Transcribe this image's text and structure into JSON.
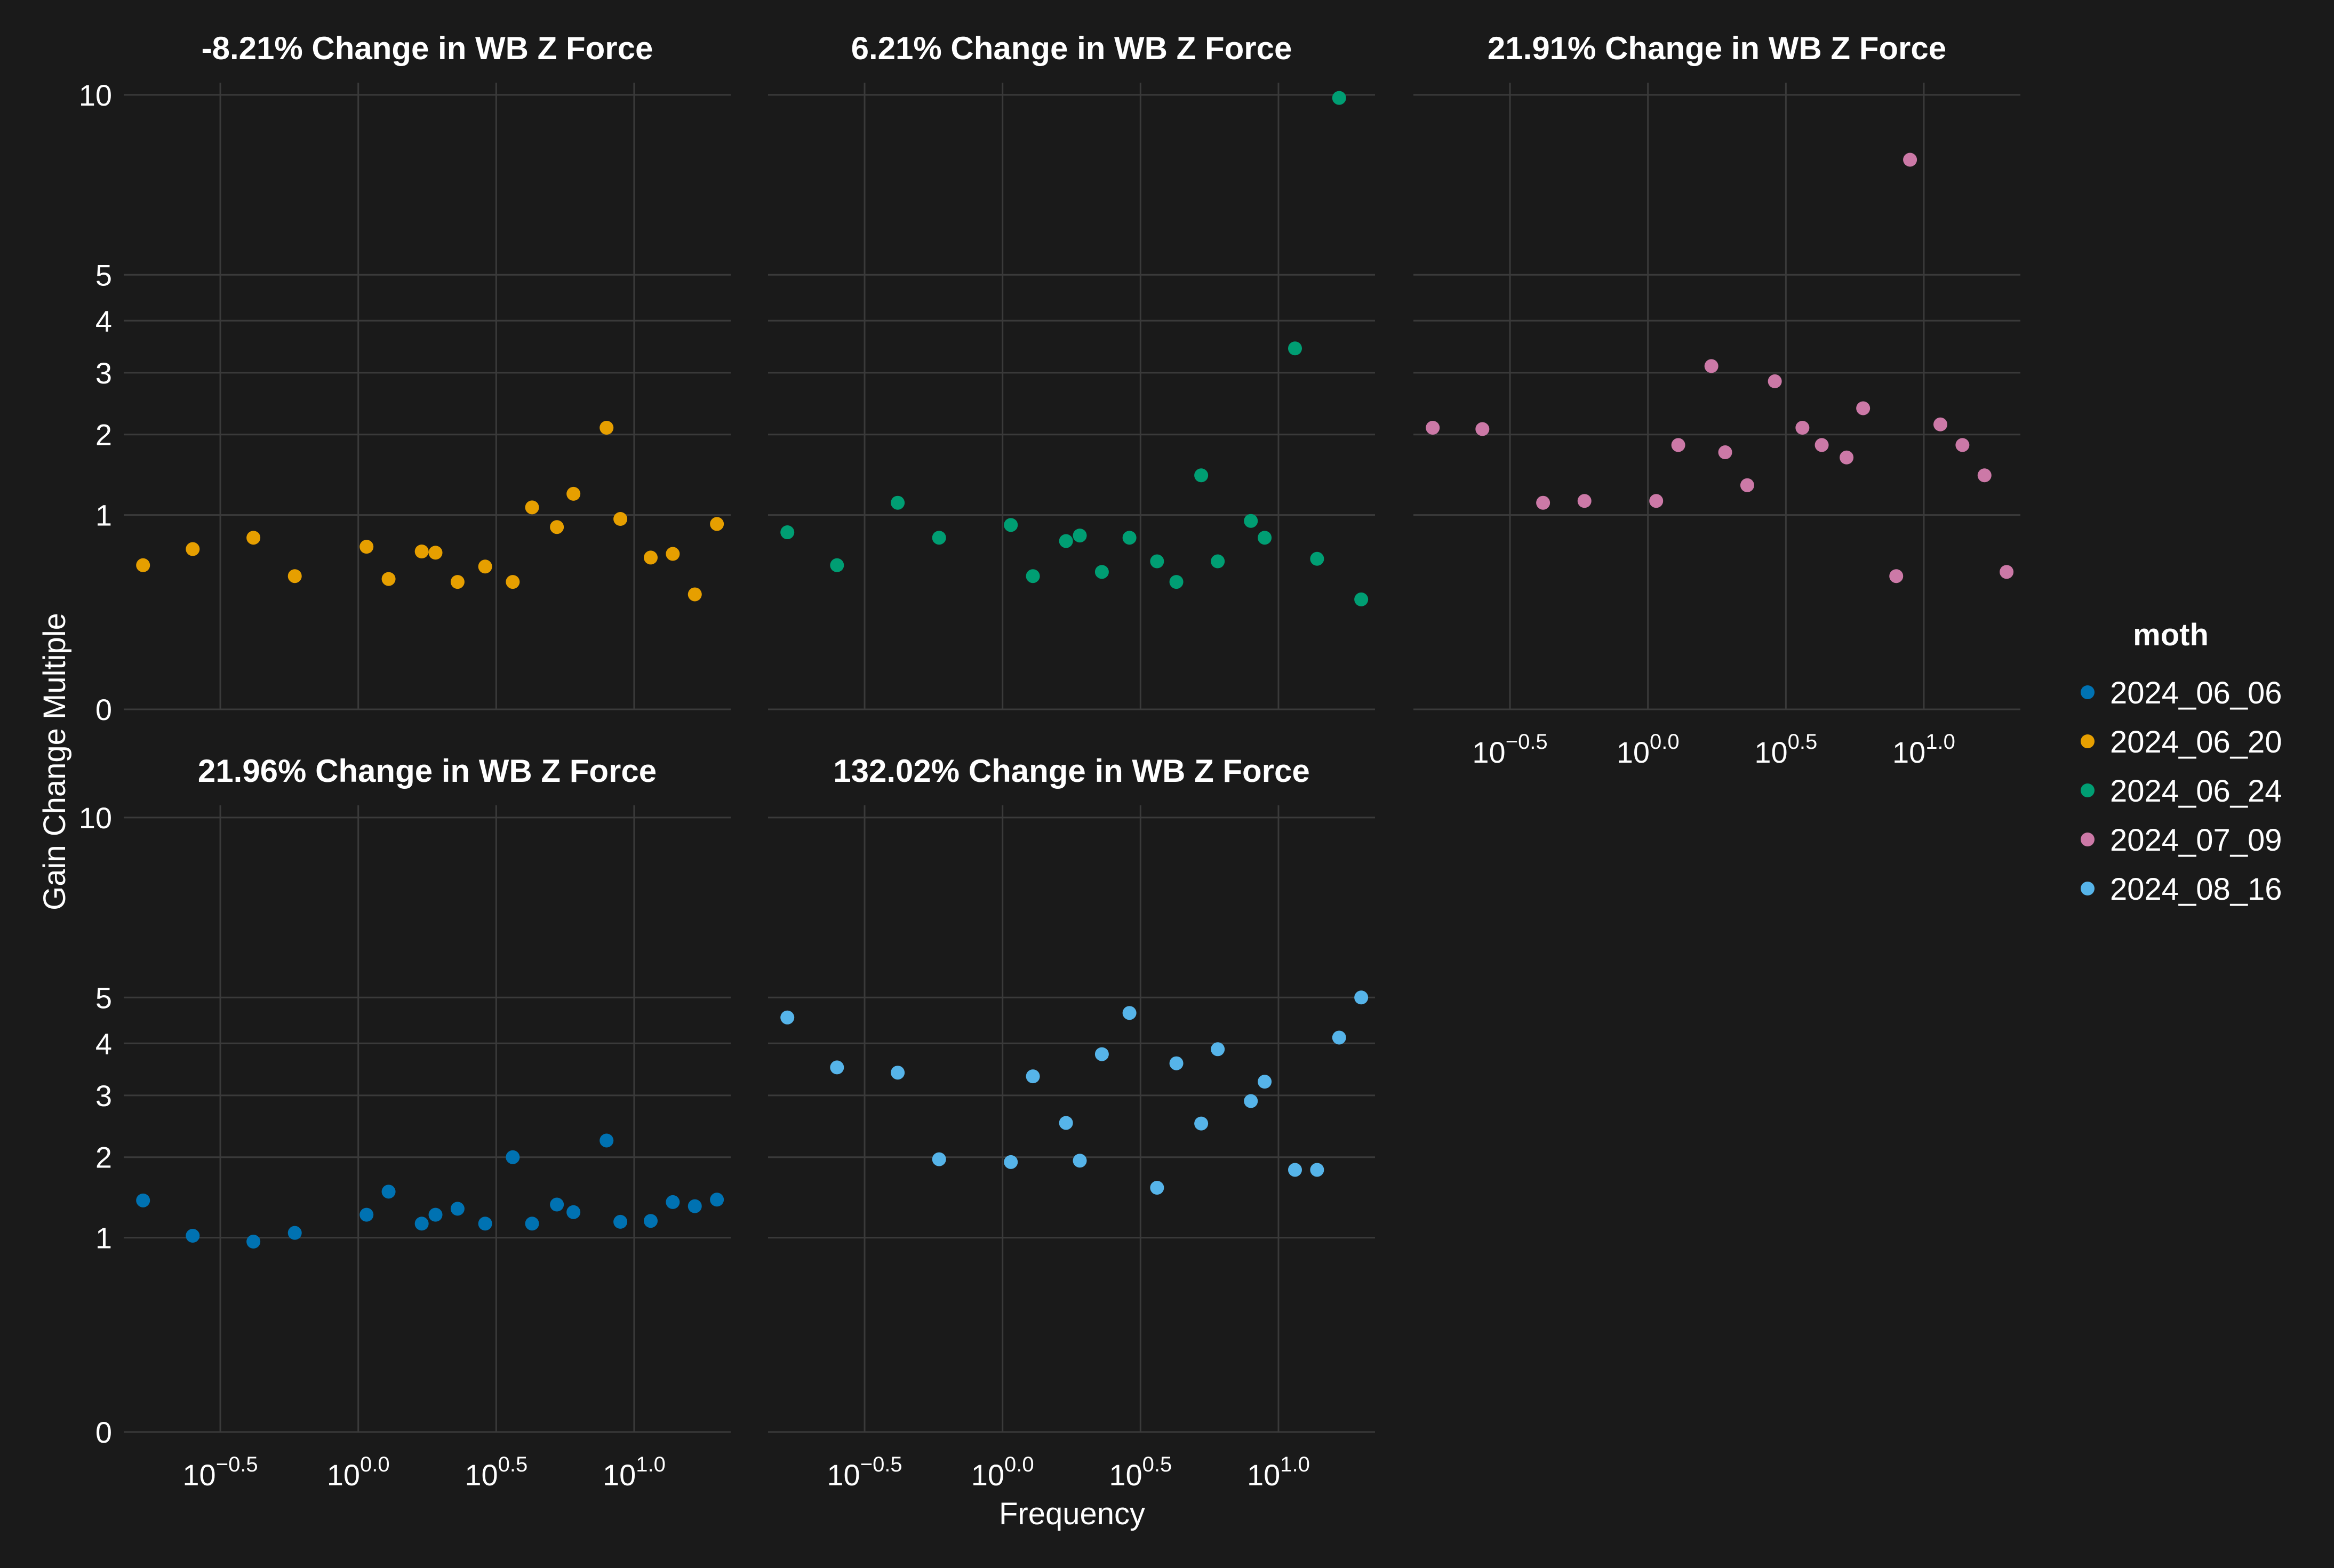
{
  "chart_data": {
    "type": "scatter",
    "xlabel": "Frequency",
    "ylabel": "Gain Change Multiple",
    "x_scale": "log10",
    "x_ticks": [
      {
        "value": -0.5,
        "label": "10",
        "exp": "−0.5"
      },
      {
        "value": 0.0,
        "label": "10",
        "exp": "0.0"
      },
      {
        "value": 0.5,
        "label": "10",
        "exp": "0.5"
      },
      {
        "value": 1.0,
        "label": "10",
        "exp": "1.0"
      }
    ],
    "x_range_log10": [
      -0.85,
      1.35
    ],
    "y_ticks": [
      0,
      1,
      2,
      3,
      4,
      5,
      10
    ],
    "y_scale": "sqrt",
    "ylim": [
      0,
      10.4
    ],
    "grid": true,
    "legend": {
      "title": "moth",
      "position": "right"
    },
    "colors": {
      "background": "#1a1a1a",
      "grid": "#3a3a3a",
      "text": "#ffffff"
    },
    "panels": [
      {
        "title": "-8.21% Change in WB Z Force",
        "series": "2024_06_20",
        "color": "#E69F00",
        "x_log10": [
          -0.78,
          -0.6,
          -0.38,
          -0.23,
          0.03,
          0.11,
          0.23,
          0.28,
          0.36,
          0.46,
          0.56,
          0.63,
          0.72,
          0.78,
          0.9,
          0.95,
          1.06,
          1.14,
          1.22,
          1.3
        ],
        "y": [
          0.55,
          0.68,
          0.78,
          0.47,
          0.7,
          0.45,
          0.66,
          0.65,
          0.43,
          0.54,
          0.43,
          1.08,
          0.88,
          1.23,
          2.1,
          0.96,
          0.61,
          0.64,
          0.35,
          0.91
        ]
      },
      {
        "title": "6.21% Change in WB Z Force",
        "series": "2024_06_24",
        "color": "#009E73",
        "x_log10": [
          -0.78,
          -0.6,
          -0.38,
          -0.23,
          0.03,
          0.11,
          0.23,
          0.28,
          0.36,
          0.46,
          0.56,
          0.63,
          0.72,
          0.78,
          0.9,
          0.95,
          1.06,
          1.14,
          1.22,
          1.3
        ],
        "y": [
          0.83,
          0.55,
          1.13,
          0.78,
          0.9,
          0.47,
          0.75,
          0.8,
          0.5,
          0.78,
          0.58,
          0.43,
          1.45,
          0.58,
          0.94,
          0.78,
          3.45,
          0.6,
          9.9,
          0.32
        ]
      },
      {
        "title": "21.91% Change in WB Z Force",
        "series": "2024_07_09",
        "color": "#CC79A7",
        "x_log10": [
          -0.78,
          -0.6,
          -0.38,
          -0.23,
          0.03,
          0.11,
          0.23,
          0.28,
          0.36,
          0.46,
          0.56,
          0.63,
          0.72,
          0.78,
          0.9,
          0.95,
          1.06,
          1.14,
          1.22,
          1.3
        ],
        "y": [
          2.1,
          2.08,
          1.13,
          1.15,
          1.15,
          1.85,
          3.12,
          1.75,
          1.33,
          2.85,
          2.1,
          1.85,
          1.68,
          2.4,
          0.47,
          8.0,
          2.15,
          1.85,
          1.45,
          0.5
        ]
      },
      {
        "title": "21.96% Change in WB Z Force",
        "series": "2024_06_06",
        "color": "#0072B2",
        "x_log10": [
          -0.78,
          -0.6,
          -0.38,
          -0.23,
          0.03,
          0.11,
          0.23,
          0.28,
          0.36,
          0.46,
          0.56,
          0.63,
          0.72,
          0.78,
          0.9,
          0.95,
          1.06,
          1.14,
          1.22,
          1.3
        ],
        "y": [
          1.42,
          1.02,
          0.96,
          1.05,
          1.25,
          1.53,
          1.15,
          1.25,
          1.32,
          1.15,
          2.0,
          1.15,
          1.37,
          1.28,
          2.25,
          1.17,
          1.18,
          1.4,
          1.35,
          1.43
        ]
      },
      {
        "title": "132.02% Change in WB Z Force",
        "series": "2024_08_16",
        "color": "#56B4E9",
        "x_log10": [
          -0.78,
          -0.6,
          -0.38,
          -0.23,
          0.03,
          0.11,
          0.23,
          0.28,
          0.36,
          0.46,
          0.56,
          0.63,
          0.72,
          0.78,
          0.9,
          0.95,
          1.06,
          1.14,
          1.22,
          1.3
        ],
        "y": [
          4.55,
          3.52,
          3.42,
          1.97,
          1.93,
          3.35,
          2.53,
          1.95,
          3.78,
          4.65,
          1.58,
          3.6,
          2.52,
          3.88,
          2.9,
          3.25,
          1.82,
          1.82,
          4.12,
          5.0
        ]
      }
    ],
    "legend_entries": [
      {
        "label": "2024_06_06",
        "color": "#0072B2"
      },
      {
        "label": "2024_06_20",
        "color": "#E69F00"
      },
      {
        "label": "2024_06_24",
        "color": "#009E73"
      },
      {
        "label": "2024_07_09",
        "color": "#CC79A7"
      },
      {
        "label": "2024_08_16",
        "color": "#56B4E9"
      }
    ]
  }
}
